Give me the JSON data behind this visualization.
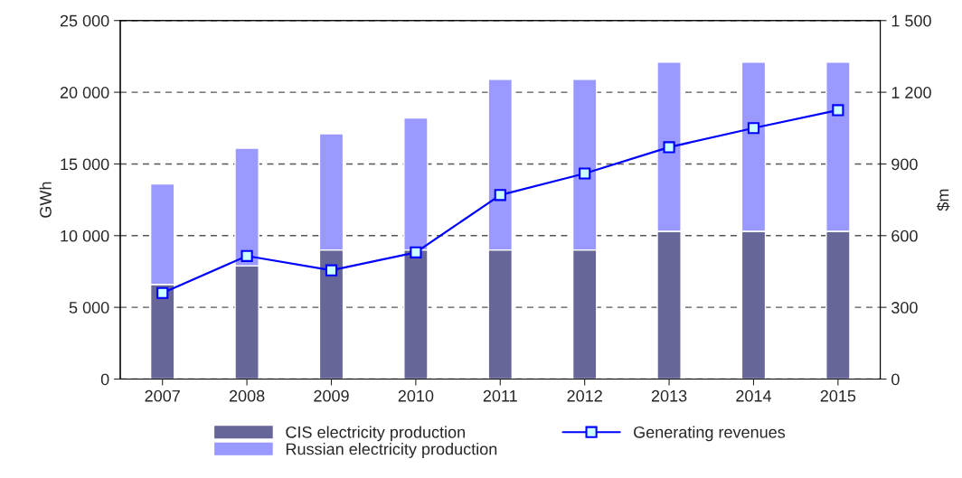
{
  "chart_data": {
    "type": "bar",
    "stacked": true,
    "ylabel": "GWh",
    "y2label": "$m",
    "categories": [
      "2007",
      "2008",
      "2009",
      "2010",
      "2011",
      "2012",
      "2013",
      "2014",
      "2015"
    ],
    "series": [
      {
        "name": "CIS electricity production",
        "color": "#666699",
        "values": [
          6600,
          7900,
          9000,
          9000,
          9000,
          9000,
          10300,
          10300,
          10300
        ]
      },
      {
        "name": "Russian electricity production",
        "color": "#9999ff",
        "values": [
          7000,
          8200,
          8100,
          9200,
          11900,
          11900,
          11800,
          11800,
          11800
        ]
      },
      {
        "name": "Generating revenues",
        "type": "line",
        "axis": "y2",
        "color": "#0000ff",
        "marker": "square",
        "values": [
          360,
          515,
          455,
          530,
          770,
          860,
          970,
          1050,
          1125
        ]
      }
    ],
    "ylim": [
      0,
      25000
    ],
    "yticks": [
      0,
      {
        "value": 5000,
        "label": "5 000"
      },
      {
        "value": 10000,
        "label": "10 000"
      },
      {
        "value": 15000,
        "label": "15 000"
      },
      {
        "value": 20000,
        "label": "20 000"
      },
      {
        "value": 25000,
        "label": "25 000"
      }
    ],
    "y2lim": [
      0,
      1500
    ],
    "y2ticks": [
      0,
      300,
      600,
      900,
      {
        "value": 1200,
        "label": "1 200"
      },
      {
        "value": 1500,
        "label": "1 500"
      }
    ],
    "grid": "y",
    "legend": "bottom"
  }
}
